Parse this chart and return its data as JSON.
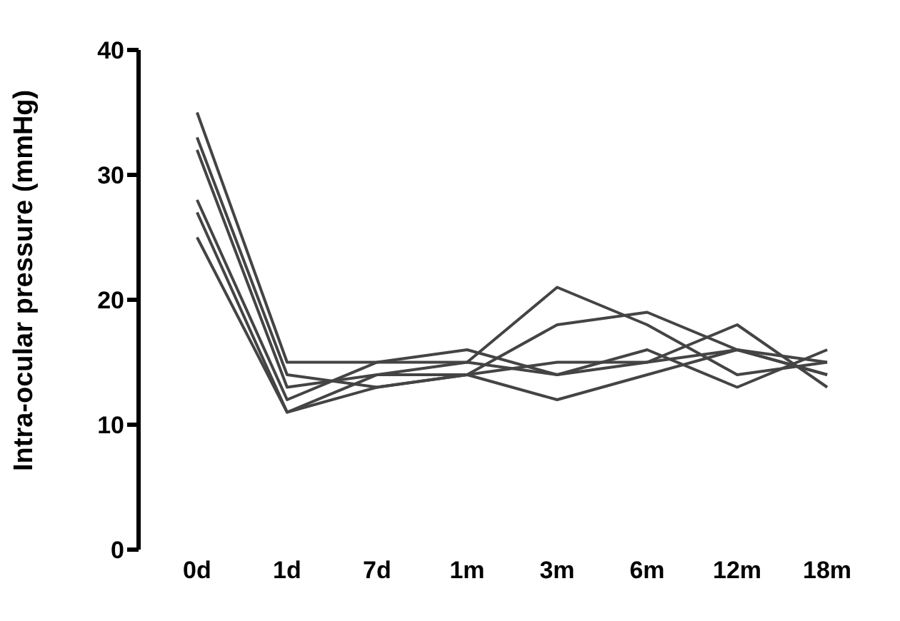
{
  "chart_data": {
    "type": "line",
    "ylabel": "Intra-ocular pressure (mmHg)",
    "categories": [
      "0d",
      "1d",
      "7d",
      "1m",
      "3m",
      "6m",
      "12m",
      "18m"
    ],
    "series": [
      {
        "color": "#444444",
        "values": [
          35,
          15,
          15,
          15,
          21,
          18,
          14,
          15
        ]
      },
      {
        "color": "#444444",
        "values": [
          33,
          14,
          13,
          14,
          18,
          19,
          16,
          14
        ]
      },
      {
        "color": "#444444",
        "values": [
          32,
          13,
          14,
          15,
          14,
          15,
          18,
          13
        ]
      },
      {
        "color": "#444444",
        "values": [
          28,
          12,
          15,
          16,
          14,
          16,
          13,
          16
        ]
      },
      {
        "color": "#444444",
        "values": [
          27,
          11,
          13,
          14,
          12,
          14,
          16,
          15
        ]
      },
      {
        "color": "#444444",
        "values": [
          25,
          11,
          14,
          14,
          15,
          15,
          16,
          14
        ]
      }
    ],
    "ylim": [
      0,
      40
    ],
    "yticks": [
      0,
      10,
      20,
      30,
      40
    ],
    "marker": "none",
    "line_style": "solid"
  }
}
